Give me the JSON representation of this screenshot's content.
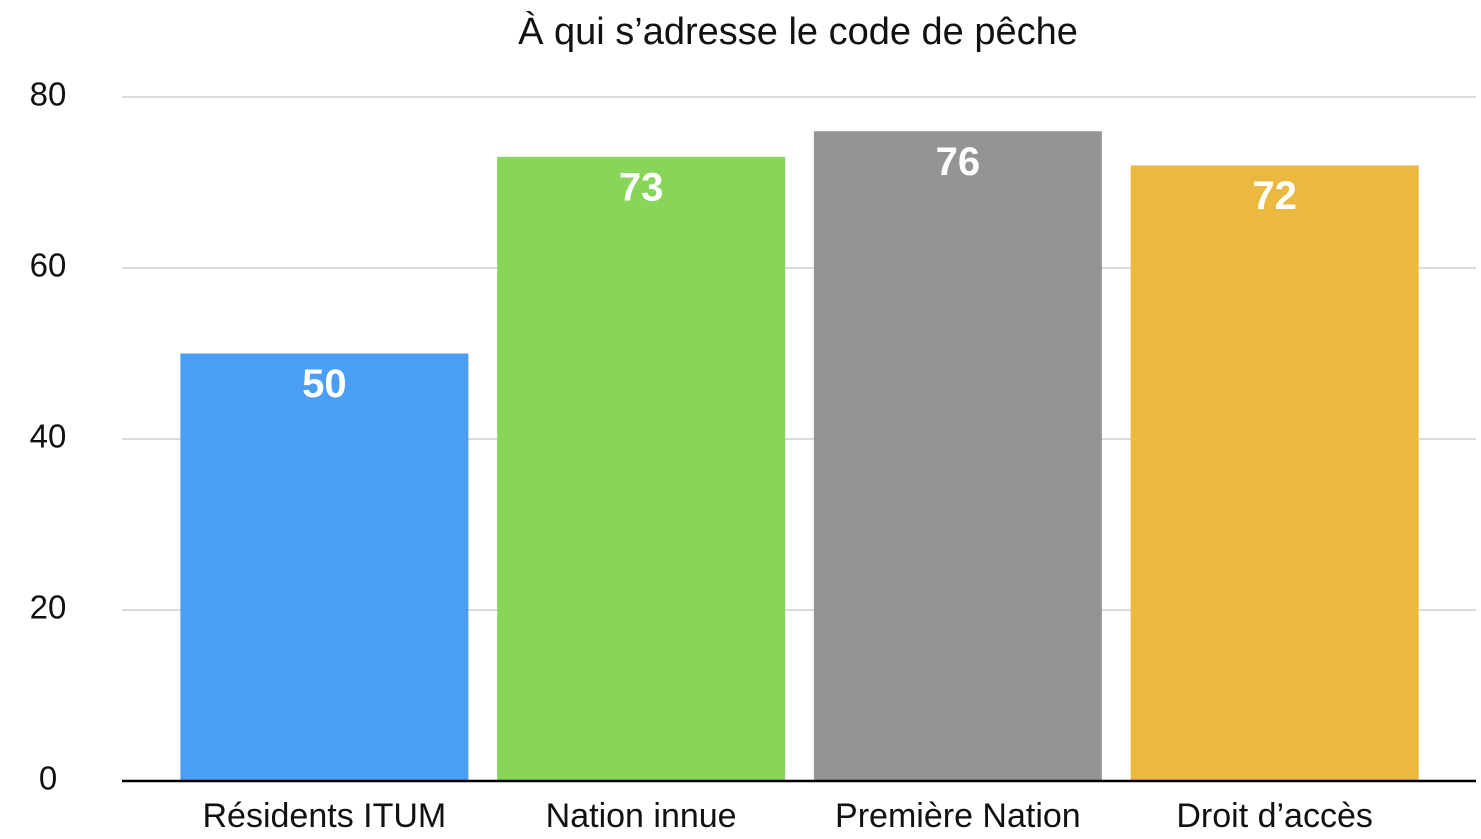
{
  "chart_data": {
    "type": "bar",
    "title": "À qui s’adresse le code de pêche",
    "categories": [
      "Résidents ITUM",
      "Nation innue",
      "Première Nation",
      "Droit d’accès"
    ],
    "values": [
      50,
      73,
      76,
      72
    ],
    "colors": [
      "#4a9ff5",
      "#87d65a",
      "#949494",
      "#ecb940"
    ],
    "ylim": [
      0,
      80
    ],
    "yticks": [
      0,
      20,
      40,
      60,
      80
    ],
    "grid": true
  }
}
